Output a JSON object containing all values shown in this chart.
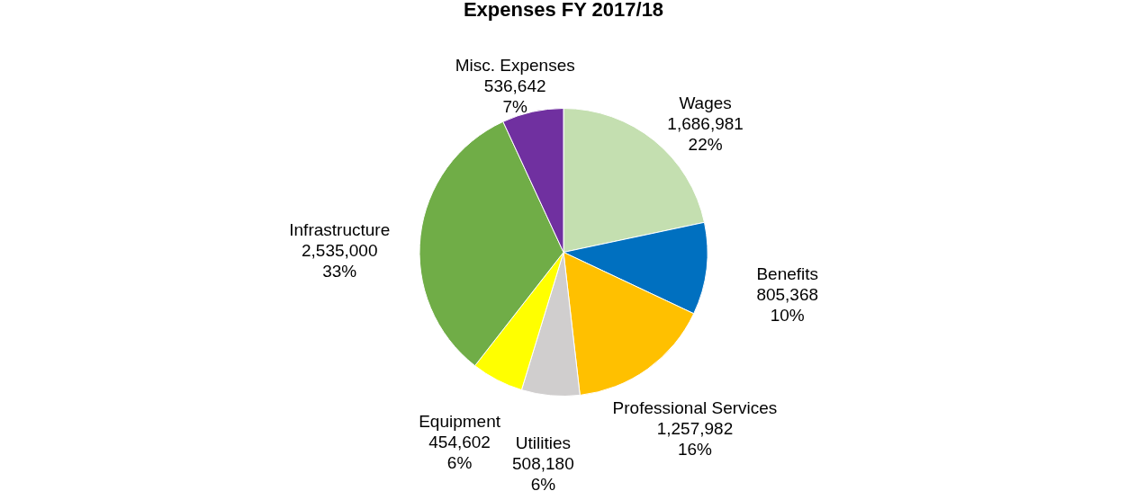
{
  "chart_data": {
    "type": "pie",
    "title": "Expenses FY 2017/18",
    "categories": [
      "Wages",
      "Benefits",
      "Professional Services",
      "Utilities",
      "Equipment",
      "Infrastructure",
      "Misc. Expenses"
    ],
    "values": [
      1686981,
      805368,
      1257982,
      508180,
      454602,
      2535000,
      536642
    ],
    "colors": [
      "#c4dfb0",
      "#0070c0",
      "#ffc000",
      "#d0cece",
      "#ffff00",
      "#70ad47",
      "#7030a0"
    ],
    "value_labels": [
      "1,686,981\n22%",
      "805,368\n10%",
      "1,257,982\n16%",
      "508,180\n6%",
      "454,602\n6%",
      "2,535,000\n33%",
      "536,642\n7%"
    ],
    "legend": false
  }
}
